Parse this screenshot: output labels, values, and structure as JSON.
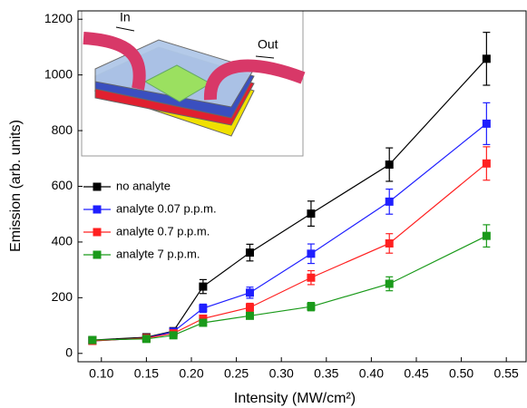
{
  "chart_data": {
    "type": "line",
    "x_label": "Intensity (MW/cm²)",
    "y_label": "Emission (arb. units)",
    "annotations": [
      "In",
      "Out"
    ],
    "xlim": [
      0.074,
      0.573
    ],
    "ylim": [
      -30,
      1230
    ],
    "xticks": [
      {
        "value": 0.1,
        "label": "0.10"
      },
      {
        "value": 0.15,
        "label": "0.15"
      },
      {
        "value": 0.2,
        "label": "0.20"
      },
      {
        "value": 0.25,
        "label": "0.25"
      },
      {
        "value": 0.3,
        "label": "0.30"
      },
      {
        "value": 0.35,
        "label": "0.35"
      },
      {
        "value": 0.4,
        "label": "0.40"
      },
      {
        "value": 0.45,
        "label": "0.45"
      },
      {
        "value": 0.5,
        "label": "0.50"
      },
      {
        "value": 0.55,
        "label": "0.55"
      }
    ],
    "yticks": [
      0,
      200,
      400,
      600,
      800,
      1000,
      1200
    ],
    "x": [
      0.09,
      0.15,
      0.18,
      0.213,
      0.265,
      0.333,
      0.42,
      0.528
    ],
    "series": [
      {
        "name": "no analyte",
        "color": "#000000",
        "values": [
          48,
          58,
          80,
          240,
          362,
          502,
          678,
          1058
        ],
        "errors": [
          null,
          null,
          null,
          25,
          30,
          45,
          60,
          95
        ]
      },
      {
        "name": "analyte 0.07 p.p.m.",
        "color": "#1f1fff",
        "values": [
          45,
          55,
          78,
          162,
          218,
          358,
          545,
          825
        ],
        "errors": [
          null,
          null,
          null,
          15,
          20,
          35,
          45,
          75
        ]
      },
      {
        "name": "analyte 0.7 p.p.m.",
        "color": "#ff2020",
        "values": [
          45,
          55,
          72,
          125,
          165,
          272,
          395,
          682
        ],
        "errors": [
          null,
          null,
          null,
          10,
          15,
          25,
          35,
          60
        ]
      },
      {
        "name": "analyte 7 p.p.m.",
        "color": "#1a9a1a",
        "values": [
          48,
          52,
          65,
          110,
          135,
          168,
          250,
          422
        ],
        "errors": [
          null,
          null,
          null,
          8,
          10,
          15,
          25,
          40
        ]
      }
    ]
  }
}
